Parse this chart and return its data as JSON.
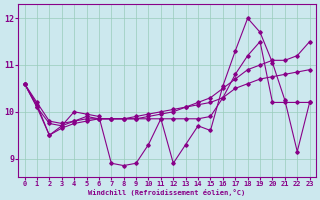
{
  "xlabel": "Windchill (Refroidissement éolien,°C)",
  "bg_color": "#cce8ee",
  "grid_color": "#99ccbb",
  "line_color": "#880088",
  "xlim": [
    -0.5,
    23.5
  ],
  "ylim": [
    8.6,
    12.3
  ],
  "yticks": [
    9,
    10,
    11,
    12
  ],
  "xticks": [
    0,
    1,
    2,
    3,
    4,
    5,
    6,
    7,
    8,
    9,
    10,
    11,
    12,
    13,
    14,
    15,
    16,
    17,
    18,
    19,
    20,
    21,
    22,
    23
  ],
  "series": [
    {
      "x": [
        0,
        1,
        2,
        3,
        4,
        5,
        6,
        7,
        8,
        9,
        10,
        11,
        12,
        13,
        14,
        15,
        16,
        17,
        18,
        19,
        20,
        21,
        22,
        23
      ],
      "y": [
        10.6,
        10.2,
        9.8,
        9.75,
        9.8,
        9.9,
        9.85,
        9.85,
        9.85,
        9.85,
        9.85,
        9.85,
        9.85,
        9.85,
        9.85,
        9.9,
        10.3,
        10.8,
        11.2,
        11.5,
        10.2,
        10.2,
        10.2,
        10.2
      ]
    },
    {
      "x": [
        0,
        1,
        2,
        3,
        4,
        5,
        6,
        7,
        8,
        9,
        10,
        11,
        12,
        13,
        14,
        15,
        16,
        17,
        18,
        19,
        20,
        21,
        22,
        23
      ],
      "y": [
        10.6,
        10.1,
        9.5,
        9.7,
        10.0,
        9.95,
        9.9,
        8.9,
        8.85,
        8.9,
        9.3,
        9.85,
        8.9,
        9.3,
        9.7,
        9.6,
        10.55,
        11.3,
        12.0,
        11.7,
        11.05,
        10.25,
        9.15,
        10.2
      ]
    },
    {
      "x": [
        0,
        1,
        2,
        3,
        4,
        5,
        6,
        7,
        8,
        9,
        10,
        11,
        12,
        13,
        14,
        15,
        16,
        17,
        18,
        19,
        20,
        21,
        22,
        23
      ],
      "y": [
        10.6,
        10.1,
        9.75,
        9.7,
        9.8,
        9.85,
        9.85,
        9.85,
        9.85,
        9.85,
        9.9,
        9.95,
        10.0,
        10.1,
        10.2,
        10.3,
        10.5,
        10.7,
        10.9,
        11.0,
        11.1,
        11.1,
        11.2,
        11.5
      ]
    },
    {
      "x": [
        0,
        1,
        2,
        3,
        4,
        5,
        6,
        7,
        8,
        9,
        10,
        11,
        12,
        13,
        14,
        15,
        16,
        17,
        18,
        19,
        20,
        21,
        22,
        23
      ],
      "y": [
        10.6,
        10.15,
        9.5,
        9.65,
        9.75,
        9.8,
        9.85,
        9.85,
        9.85,
        9.9,
        9.95,
        10.0,
        10.05,
        10.1,
        10.15,
        10.2,
        10.3,
        10.5,
        10.6,
        10.7,
        10.75,
        10.8,
        10.85,
        10.9
      ]
    }
  ]
}
